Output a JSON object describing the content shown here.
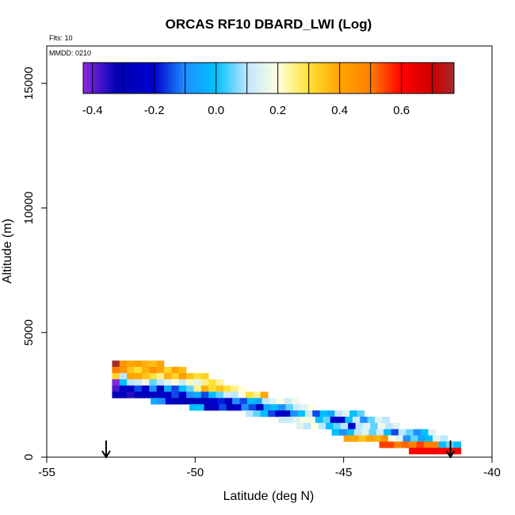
{
  "chart_data": {
    "type": "heatmap",
    "title": "ORCAS RF10 DBARD_LWI (Log)",
    "xlabel": "Latitude (deg N)",
    "ylabel": "Altitude (m)",
    "xlim": [
      -55,
      -40
    ],
    "ylim": [
      0,
      16500
    ],
    "x_ticks": [
      -55,
      -50,
      -45,
      -40
    ],
    "x_tick_labels": [
      "-55",
      "-50",
      "-45",
      "-40"
    ],
    "y_ticks": [
      0,
      5000,
      10000,
      15000
    ],
    "y_tick_labels": [
      "0",
      "5000",
      "10000",
      "15000"
    ],
    "annotations": {
      "flights": "Flts: 10",
      "date": "MMDD: 0210"
    },
    "colorbar": {
      "range": [
        -0.43,
        0.77
      ],
      "ticks": [
        -0.4,
        -0.2,
        0.0,
        0.2,
        0.4,
        0.6
      ],
      "tick_labels": [
        "-0.4",
        "-0.2",
        "0.0",
        "0.2",
        "0.4",
        "0.6"
      ],
      "stops": [
        {
          "value": -0.43,
          "color": "#8a2be2"
        },
        {
          "value": -0.32,
          "color": "#0000b4"
        },
        {
          "value": -0.2,
          "color": "#0000cd"
        },
        {
          "value": -0.1,
          "color": "#1e90ff"
        },
        {
          "value": 0.0,
          "color": "#00bfff"
        },
        {
          "value": 0.1,
          "color": "#bfe6ff"
        },
        {
          "value": 0.2,
          "color": "#ffffe0"
        },
        {
          "value": 0.3,
          "color": "#ffe135"
        },
        {
          "value": 0.4,
          "color": "#ffa500"
        },
        {
          "value": 0.5,
          "color": "#ff7f00"
        },
        {
          "value": 0.6,
          "color": "#ff0000"
        },
        {
          "value": 0.7,
          "color": "#cd0000"
        },
        {
          "value": 0.77,
          "color": "#a52a2a"
        }
      ]
    },
    "arrows": [
      {
        "x": -53.0,
        "label": "start"
      },
      {
        "x": -41.4,
        "label": "end"
      }
    ],
    "cell_width_deg": 0.25,
    "cell_height_m": 250,
    "rows": [
      {
        "y": 3750,
        "x_start": -52.8,
        "values": [
          0.77,
          0.45,
          0.4,
          0.42,
          0.38,
          0.36,
          0.4
        ]
      },
      {
        "y": 3500,
        "x_start": -52.8,
        "values": [
          0.5,
          0.45,
          0.35,
          0.3,
          0.38,
          0.45,
          0.4,
          0.32,
          0.4,
          0.36
        ]
      },
      {
        "y": 3250,
        "x_start": -52.8,
        "values": [
          0.32,
          0.1,
          0.4,
          0.4,
          0.35,
          0.3,
          0.25,
          0.38,
          0.32,
          0.42,
          0.35,
          0.3,
          0.33
        ]
      },
      {
        "y": 3000,
        "x_start": -52.8,
        "values": [
          -0.42,
          0.0,
          0.1,
          0.12,
          0.18,
          0.05,
          0.1,
          0.15,
          0.2,
          0.12,
          0.22,
          0.16,
          0.25,
          0.3,
          0.24
        ]
      },
      {
        "y": 2750,
        "x_start": -52.8,
        "values": [
          -0.38,
          -0.2,
          -0.25,
          -0.15,
          -0.22,
          -0.1,
          -0.3,
          -0.05,
          -0.15,
          0.0,
          0.05,
          0.25,
          0.38,
          0.3,
          0.35,
          0.3,
          0.25,
          0.2
        ]
      },
      {
        "y": 2500,
        "x_start": -52.8,
        "values": [
          -0.3,
          -0.3,
          -0.35,
          -0.3,
          -0.25,
          -0.28,
          -0.2,
          -0.25,
          -0.15,
          -0.2,
          -0.1,
          -0.05,
          -0.15,
          0.0,
          0.05,
          0.12,
          0.1,
          0.2,
          0.3,
          0.25,
          0.4
        ]
      },
      {
        "y": 2250,
        "x_start": -51.5,
        "values": [
          -0.05,
          -0.1,
          -0.2,
          -0.32,
          -0.3,
          -0.3,
          -0.25,
          -0.28,
          -0.2,
          -0.18,
          -0.25,
          -0.1,
          -0.15,
          0.0,
          -0.05,
          0.1,
          0.15,
          0.2,
          0.12,
          0.18
        ]
      },
      {
        "y": 2000,
        "x_start": -50.2,
        "values": [
          0.0,
          0.0,
          -0.3,
          -0.25,
          -0.15,
          -0.3,
          -0.2,
          -0.1,
          -0.15,
          -0.25,
          -0.05,
          0.0,
          -0.1,
          0.05,
          0.12,
          0.15,
          0.2
        ]
      },
      {
        "y": 1750,
        "x_start": -48.3,
        "values": [
          0.1,
          0.05,
          0.0,
          -0.15,
          -0.2,
          -0.25,
          -0.1,
          0.0,
          0.12,
          -0.15,
          0.0,
          -0.05,
          0.1,
          0.15,
          0.0,
          0.05
        ]
      },
      {
        "y": 1500,
        "x_start": -47.2,
        "values": [
          0.12,
          0.12,
          0.15,
          0.2,
          0.18,
          0.0,
          0.05,
          -0.2,
          -0.25,
          0.0,
          0.12,
          -0.1,
          0.05,
          0.15,
          0.1
        ]
      },
      {
        "y": 1250,
        "x_start": -46.6,
        "values": [
          0.15,
          0.1,
          0.2,
          0.1,
          0.0,
          0.05,
          0.1,
          -0.2,
          0.1,
          0.15,
          0.05,
          0.18,
          0.1,
          0.15
        ]
      },
      {
        "y": 1000,
        "x_start": -45.4,
        "values": [
          0.0,
          -0.1,
          0.0,
          0.1,
          0.15,
          0.05,
          0.12,
          0.0,
          -0.15,
          0.1,
          0.05,
          -0.1,
          0.0,
          0.15
        ]
      },
      {
        "y": 750,
        "x_start": -45.0,
        "values": [
          0.4,
          0.4,
          0.35,
          0.4,
          0.38,
          0.45,
          0.2,
          0.15,
          -0.1,
          0.05,
          -0.05,
          0.0,
          0.15,
          0.1
        ]
      },
      {
        "y": 500,
        "x_start": -43.8,
        "values": [
          0.55,
          0.55,
          0.5,
          0.52,
          0.5,
          0.55,
          0.5,
          0.5,
          0.0,
          0.05,
          0.0
        ]
      },
      {
        "y": 250,
        "x_start": -42.8,
        "values": [
          0.6,
          0.6,
          0.6,
          0.62,
          0.6,
          0.6,
          0.6
        ]
      }
    ]
  }
}
